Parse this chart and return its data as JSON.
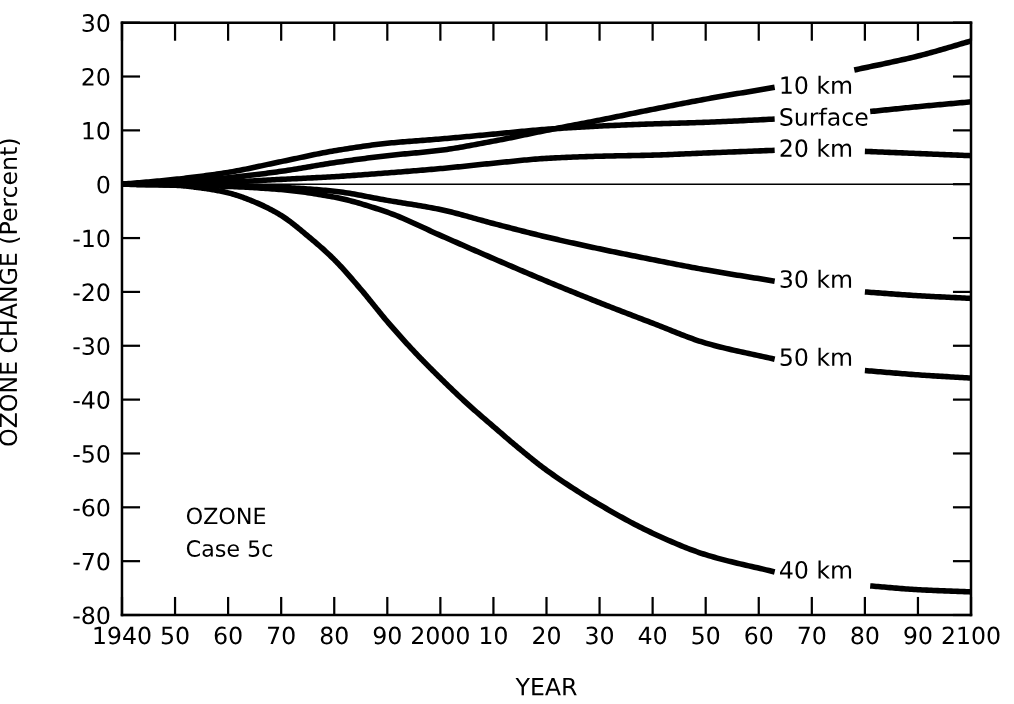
{
  "chart_data": {
    "type": "line",
    "xlabel": "YEAR",
    "ylabel": "OZONE CHANGE (Percent)",
    "annotations": [
      "OZONE",
      "Case 5c"
    ],
    "xlim": [
      1940,
      2100
    ],
    "xticks": [
      1940,
      {
        "value": 1950,
        "label": "50"
      },
      {
        "value": 1960,
        "label": "60"
      },
      {
        "value": 1970,
        "label": "70"
      },
      {
        "value": 1980,
        "label": "80"
      },
      {
        "value": 1990,
        "label": "90"
      },
      2000,
      {
        "value": 2010,
        "label": "10"
      },
      {
        "value": 2020,
        "label": "20"
      },
      {
        "value": 2030,
        "label": "30"
      },
      {
        "value": 2040,
        "label": "40"
      },
      {
        "value": 2050,
        "label": "50"
      },
      {
        "value": 2060,
        "label": "60"
      },
      {
        "value": 2070,
        "label": "70"
      },
      {
        "value": 2080,
        "label": "80"
      },
      {
        "value": 2090,
        "label": "90"
      },
      2100
    ],
    "ylim": [
      -80,
      30
    ],
    "yticks": [
      -80,
      -70,
      -60,
      -50,
      -40,
      -30,
      -20,
      -10,
      0,
      10,
      20,
      30
    ],
    "ref_lines": [
      {
        "axis": "y",
        "value": 0,
        "color": "#000000"
      }
    ],
    "series": [
      {
        "name": "10 km",
        "color": "#000000",
        "x": [
          1940,
          1950,
          1960,
          1970,
          1980,
          1990,
          2000,
          2010,
          2020,
          2030,
          2040,
          2050,
          2063,
          2072,
          2078,
          2090,
          2100
        ],
        "values": [
          0,
          0.4,
          1.2,
          2.4,
          4.0,
          5.3,
          6.3,
          8.0,
          10.0,
          11.9,
          13.9,
          15.8,
          18.0,
          null,
          21.2,
          23.8,
          26.6
        ]
      },
      {
        "name": "Surface",
        "color": "#000000",
        "x": [
          1940,
          1950,
          1960,
          1970,
          1980,
          1990,
          2000,
          2010,
          2020,
          2030,
          2040,
          2050,
          2063,
          2072,
          2081,
          2090,
          2100
        ],
        "values": [
          0,
          0.9,
          2.2,
          4.2,
          6.2,
          7.6,
          8.4,
          9.3,
          10.2,
          10.8,
          11.2,
          11.5,
          12.1,
          null,
          13.5,
          14.4,
          15.3
        ]
      },
      {
        "name": "20 km",
        "color": "#000000",
        "x": [
          1940,
          1950,
          1960,
          1970,
          1980,
          1990,
          2000,
          2010,
          2020,
          2030,
          2040,
          2050,
          2063,
          2072,
          2080,
          2090,
          2100
        ],
        "values": [
          0,
          0.1,
          0.4,
          0.9,
          1.4,
          2.1,
          2.9,
          3.9,
          4.8,
          5.2,
          5.4,
          5.8,
          6.3,
          null,
          6.1,
          5.7,
          5.3
        ]
      },
      {
        "name": "30 km",
        "color": "#000000",
        "x": [
          1940,
          1950,
          1960,
          1970,
          1980,
          1990,
          2000,
          2010,
          2020,
          2030,
          2040,
          2050,
          2063,
          2072,
          2080,
          2090,
          2100
        ],
        "values": [
          0,
          -0.1,
          -0.3,
          -0.6,
          -1.3,
          -3.0,
          -4.7,
          -7.3,
          -9.8,
          -12.0,
          -14.0,
          -15.9,
          -18.0,
          null,
          -20.0,
          -20.7,
          -21.2
        ]
      },
      {
        "name": "50 km",
        "color": "#000000",
        "x": [
          1940,
          1950,
          1960,
          1970,
          1980,
          1990,
          2000,
          2010,
          2020,
          2030,
          2040,
          2050,
          2063,
          2072,
          2080,
          2090,
          2100
        ],
        "values": [
          0,
          -0.1,
          -0.4,
          -1.0,
          -2.4,
          -5.2,
          -9.5,
          -13.8,
          -18.0,
          -22.0,
          -25.8,
          -29.5,
          -32.5,
          null,
          -34.6,
          -35.4,
          -36.0
        ]
      },
      {
        "name": "40 km",
        "color": "#000000",
        "x": [
          1940,
          1950,
          1955,
          1960,
          1965,
          1970,
          1975,
          1980,
          1985,
          1990,
          1995,
          2000,
          2005,
          2010,
          2015,
          2020,
          2030,
          2040,
          2050,
          2063,
          2072,
          2081,
          2090,
          2100
        ],
        "values": [
          0,
          -0.2,
          -0.7,
          -1.6,
          -3.3,
          -5.8,
          -9.6,
          -14.0,
          -19.5,
          -25.5,
          -31.0,
          -36.0,
          -40.7,
          -45.0,
          -49.2,
          -53.1,
          -59.5,
          -64.8,
          -68.8,
          -72.0,
          null,
          -74.6,
          -75.3,
          -75.7
        ]
      }
    ]
  }
}
